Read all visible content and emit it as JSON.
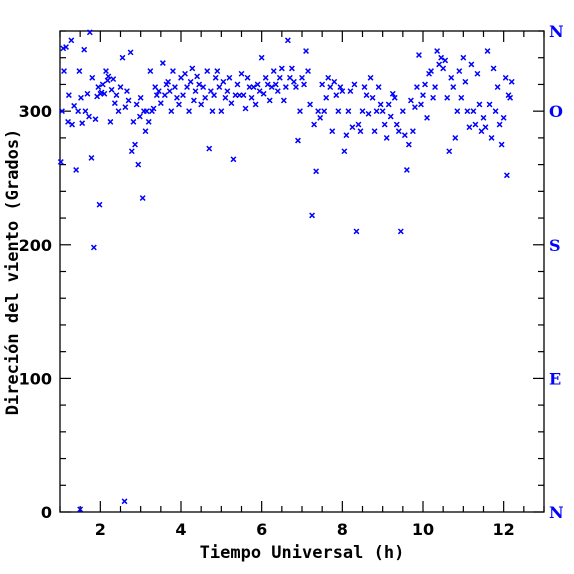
{
  "chart_data": {
    "type": "scatter",
    "title": "",
    "xlabel": "Tiempo Universal (h)",
    "ylabel": "Direción del viento (Grados)",
    "xlim": [
      1,
      13
    ],
    "ylim": [
      0,
      360
    ],
    "x_ticks": [
      2,
      4,
      6,
      8,
      10,
      12
    ],
    "y_ticks": [
      0,
      100,
      200,
      300
    ],
    "right_axis_labels": [
      "N",
      "E",
      "S",
      "O",
      "N"
    ],
    "right_axis_values": [
      0,
      100,
      200,
      300,
      360
    ],
    "marker": "x",
    "color": "#0000ff",
    "axis_color": "#000000",
    "grid": false,
    "series": [
      {
        "points": [
          [
            1.02,
            262
          ],
          [
            1.05,
            300
          ],
          [
            1.08,
            347
          ],
          [
            1.1,
            330
          ],
          [
            1.15,
            348
          ],
          [
            1.2,
            292
          ],
          [
            1.22,
            312
          ],
          [
            1.28,
            353
          ],
          [
            1.3,
            290
          ],
          [
            1.35,
            304
          ],
          [
            1.4,
            256
          ],
          [
            1.45,
            300
          ],
          [
            1.48,
            330
          ],
          [
            1.5,
            2
          ],
          [
            1.52,
            310
          ],
          [
            1.55,
            291
          ],
          [
            1.6,
            346
          ],
          [
            1.63,
            300
          ],
          [
            1.68,
            313
          ],
          [
            1.72,
            296
          ],
          [
            1.74,
            359
          ],
          [
            1.78,
            265
          ],
          [
            1.8,
            325
          ],
          [
            1.84,
            198
          ],
          [
            1.88,
            294
          ],
          [
            1.92,
            311
          ],
          [
            1.95,
            318
          ],
          [
            1.98,
            230
          ],
          [
            2.0,
            313
          ],
          [
            2.03,
            314
          ],
          [
            2.06,
            320
          ],
          [
            2.1,
            313
          ],
          [
            2.14,
            330
          ],
          [
            2.18,
            323
          ],
          [
            2.2,
            326
          ],
          [
            2.25,
            292
          ],
          [
            2.28,
            316
          ],
          [
            2.32,
            324
          ],
          [
            2.36,
            306
          ],
          [
            2.4,
            312
          ],
          [
            2.45,
            300
          ],
          [
            2.5,
            318
          ],
          [
            2.55,
            340
          ],
          [
            2.6,
            8
          ],
          [
            2.62,
            303
          ],
          [
            2.66,
            315
          ],
          [
            2.7,
            308
          ],
          [
            2.75,
            344
          ],
          [
            2.78,
            270
          ],
          [
            2.82,
            292
          ],
          [
            2.86,
            275
          ],
          [
            2.9,
            305
          ],
          [
            2.94,
            260
          ],
          [
            2.98,
            296
          ],
          [
            3.0,
            310
          ],
          [
            3.05,
            235
          ],
          [
            3.08,
            300
          ],
          [
            3.12,
            285
          ],
          [
            3.15,
            300
          ],
          [
            3.2,
            292
          ],
          [
            3.24,
            330
          ],
          [
            3.28,
            300
          ],
          [
            3.32,
            302
          ],
          [
            3.36,
            318
          ],
          [
            3.4,
            312
          ],
          [
            3.45,
            315
          ],
          [
            3.5,
            306
          ],
          [
            3.55,
            336
          ],
          [
            3.6,
            312
          ],
          [
            3.64,
            320
          ],
          [
            3.68,
            322
          ],
          [
            3.72,
            315
          ],
          [
            3.76,
            300
          ],
          [
            3.8,
            330
          ],
          [
            3.85,
            318
          ],
          [
            3.9,
            310
          ],
          [
            3.95,
            305
          ],
          [
            4.0,
            325
          ],
          [
            4.05,
            312
          ],
          [
            4.1,
            328
          ],
          [
            4.15,
            318
          ],
          [
            4.2,
            300
          ],
          [
            4.24,
            322
          ],
          [
            4.28,
            332
          ],
          [
            4.32,
            308
          ],
          [
            4.36,
            315
          ],
          [
            4.4,
            326
          ],
          [
            4.45,
            320
          ],
          [
            4.5,
            305
          ],
          [
            4.55,
            318
          ],
          [
            4.6,
            310
          ],
          [
            4.65,
            330
          ],
          [
            4.7,
            272
          ],
          [
            4.74,
            315
          ],
          [
            4.78,
            300
          ],
          [
            4.82,
            312
          ],
          [
            4.86,
            325
          ],
          [
            4.9,
            330
          ],
          [
            4.95,
            318
          ],
          [
            5.0,
            300
          ],
          [
            5.05,
            322
          ],
          [
            5.1,
            310
          ],
          [
            5.15,
            315
          ],
          [
            5.2,
            325
          ],
          [
            5.25,
            306
          ],
          [
            5.3,
            264
          ],
          [
            5.35,
            312
          ],
          [
            5.4,
            320
          ],
          [
            5.45,
            312
          ],
          [
            5.5,
            328
          ],
          [
            5.55,
            312
          ],
          [
            5.6,
            302
          ],
          [
            5.65,
            325
          ],
          [
            5.7,
            318
          ],
          [
            5.75,
            310
          ],
          [
            5.8,
            318
          ],
          [
            5.85,
            305
          ],
          [
            5.9,
            320
          ],
          [
            5.95,
            315
          ],
          [
            6.0,
            340
          ],
          [
            6.05,
            313
          ],
          [
            6.1,
            325
          ],
          [
            6.15,
            320
          ],
          [
            6.2,
            308
          ],
          [
            6.25,
            318
          ],
          [
            6.3,
            330
          ],
          [
            6.35,
            320
          ],
          [
            6.4,
            315
          ],
          [
            6.45,
            325
          ],
          [
            6.5,
            332
          ],
          [
            6.55,
            308
          ],
          [
            6.6,
            318
          ],
          [
            6.65,
            353
          ],
          [
            6.7,
            325
          ],
          [
            6.75,
            332
          ],
          [
            6.8,
            322
          ],
          [
            6.85,
            318
          ],
          [
            6.9,
            278
          ],
          [
            6.95,
            300
          ],
          [
            7.0,
            325
          ],
          [
            7.05,
            320
          ],
          [
            7.1,
            345
          ],
          [
            7.15,
            330
          ],
          [
            7.2,
            305
          ],
          [
            7.25,
            222
          ],
          [
            7.3,
            290
          ],
          [
            7.35,
            255
          ],
          [
            7.4,
            300
          ],
          [
            7.45,
            295
          ],
          [
            7.5,
            320
          ],
          [
            7.55,
            300
          ],
          [
            7.6,
            310
          ],
          [
            7.65,
            325
          ],
          [
            7.7,
            318
          ],
          [
            7.75,
            285
          ],
          [
            7.8,
            322
          ],
          [
            7.85,
            312
          ],
          [
            7.9,
            300
          ],
          [
            7.95,
            318
          ],
          [
            8.0,
            315
          ],
          [
            8.05,
            270
          ],
          [
            8.1,
            282
          ],
          [
            8.15,
            300
          ],
          [
            8.2,
            315
          ],
          [
            8.25,
            288
          ],
          [
            8.3,
            320
          ],
          [
            8.35,
            210
          ],
          [
            8.4,
            290
          ],
          [
            8.45,
            285
          ],
          [
            8.5,
            300
          ],
          [
            8.55,
            318
          ],
          [
            8.6,
            312
          ],
          [
            8.65,
            298
          ],
          [
            8.7,
            325
          ],
          [
            8.75,
            310
          ],
          [
            8.8,
            285
          ],
          [
            8.85,
            300
          ],
          [
            8.9,
            318
          ],
          [
            8.95,
            305
          ],
          [
            9.0,
            300
          ],
          [
            9.05,
            290
          ],
          [
            9.1,
            280
          ],
          [
            9.15,
            305
          ],
          [
            9.2,
            296
          ],
          [
            9.25,
            313
          ],
          [
            9.3,
            310
          ],
          [
            9.35,
            290
          ],
          [
            9.4,
            285
          ],
          [
            9.45,
            210
          ],
          [
            9.5,
            300
          ],
          [
            9.55,
            282
          ],
          [
            9.6,
            256
          ],
          [
            9.65,
            275
          ],
          [
            9.7,
            308
          ],
          [
            9.75,
            285
          ],
          [
            9.8,
            303
          ],
          [
            9.85,
            318
          ],
          [
            9.9,
            342
          ],
          [
            9.95,
            305
          ],
          [
            10.0,
            312
          ],
          [
            10.05,
            320
          ],
          [
            10.1,
            295
          ],
          [
            10.15,
            328
          ],
          [
            10.2,
            330
          ],
          [
            10.25,
            310
          ],
          [
            10.3,
            318
          ],
          [
            10.35,
            345
          ],
          [
            10.4,
            335
          ],
          [
            10.45,
            340
          ],
          [
            10.5,
            332
          ],
          [
            10.55,
            338
          ],
          [
            10.6,
            310
          ],
          [
            10.65,
            270
          ],
          [
            10.7,
            325
          ],
          [
            10.75,
            318
          ],
          [
            10.8,
            280
          ],
          [
            10.85,
            300
          ],
          [
            10.9,
            330
          ],
          [
            10.95,
            310
          ],
          [
            11.0,
            340
          ],
          [
            11.05,
            322
          ],
          [
            11.1,
            300
          ],
          [
            11.15,
            288
          ],
          [
            11.2,
            335
          ],
          [
            11.25,
            300
          ],
          [
            11.3,
            290
          ],
          [
            11.35,
            328
          ],
          [
            11.4,
            305
          ],
          [
            11.45,
            285
          ],
          [
            11.5,
            295
          ],
          [
            11.55,
            288
          ],
          [
            11.6,
            345
          ],
          [
            11.65,
            305
          ],
          [
            11.7,
            280
          ],
          [
            11.75,
            332
          ],
          [
            11.8,
            300
          ],
          [
            11.85,
            318
          ],
          [
            11.9,
            290
          ],
          [
            11.95,
            275
          ],
          [
            12.0,
            295
          ],
          [
            12.05,
            325
          ],
          [
            12.08,
            252
          ],
          [
            12.12,
            312
          ],
          [
            12.16,
            310
          ],
          [
            12.2,
            322
          ]
        ]
      }
    ]
  }
}
